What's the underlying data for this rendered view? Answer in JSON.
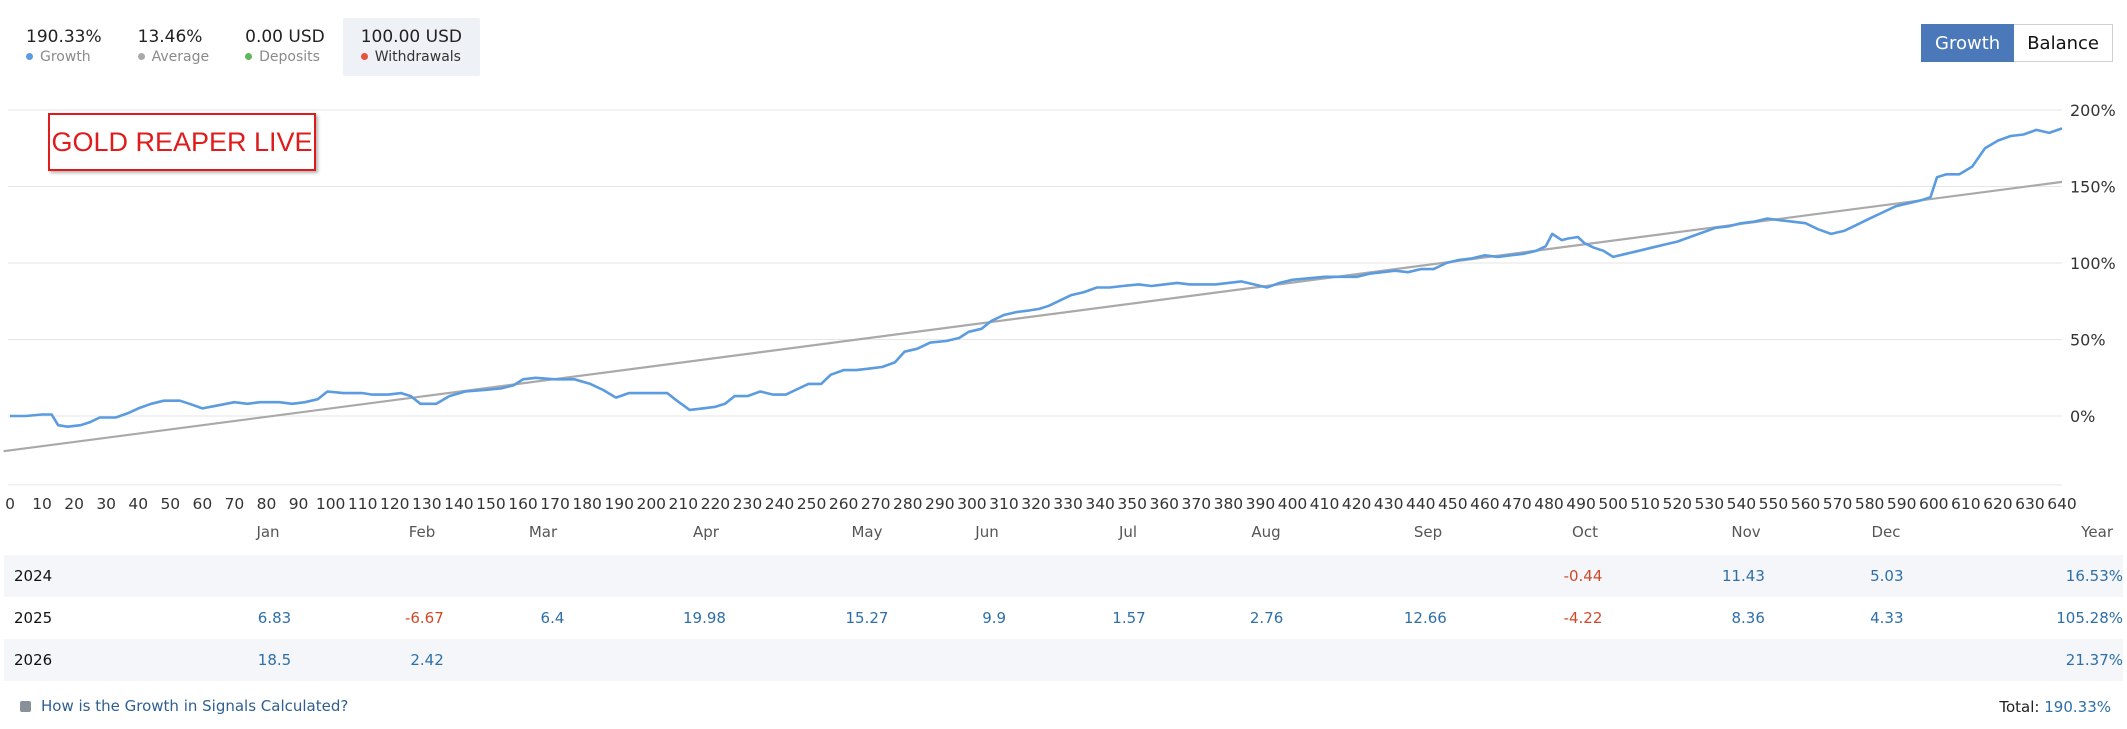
{
  "stats": [
    {
      "value": "190.33%",
      "label": "Growth",
      "dot_color": "#5b9be0",
      "active": false
    },
    {
      "value": "13.46%",
      "label": "Average",
      "dot_color": "#a9a9a9",
      "active": false
    },
    {
      "value": "0.00 USD",
      "label": "Deposits",
      "dot_color": "#5cb85c",
      "active": false
    },
    {
      "value": "100.00 USD",
      "label": "Withdrawals",
      "dot_color": "#e5533d",
      "active": true
    }
  ],
  "toggle": {
    "growth_label": "Growth",
    "balance_label": "Balance",
    "selected": "Growth"
  },
  "banner": {
    "text": "GOLD REAPER LIVE"
  },
  "chart_data": {
    "type": "line",
    "x_ticks": [
      0,
      10,
      20,
      30,
      40,
      50,
      60,
      70,
      80,
      90,
      100,
      110,
      120,
      130,
      140,
      150,
      160,
      170,
      180,
      190,
      200,
      210,
      220,
      230,
      240,
      250,
      260,
      270,
      280,
      290,
      300,
      310,
      320,
      330,
      340,
      350,
      360,
      370,
      380,
      390,
      400,
      410,
      420,
      430,
      440,
      450,
      460,
      470,
      480,
      490,
      500,
      510,
      520,
      530,
      540,
      550,
      560,
      570,
      580,
      590,
      600,
      610,
      620,
      630,
      640
    ],
    "y_ticks": [
      0,
      50,
      100,
      150,
      200
    ],
    "y_tick_labels": [
      "0%",
      "50%",
      "100%",
      "150%",
      "200%"
    ],
    "xlim": [
      0,
      640
    ],
    "ylim": [
      -45,
      200
    ],
    "y_position": "right",
    "grid": true,
    "series": [
      {
        "name": "Growth",
        "color": "#5b9be0",
        "points": [
          [
            0,
            0
          ],
          [
            5,
            0
          ],
          [
            10,
            1
          ],
          [
            13,
            1
          ],
          [
            15,
            -6
          ],
          [
            18,
            -7
          ],
          [
            22,
            -6
          ],
          [
            25,
            -4
          ],
          [
            28,
            -1
          ],
          [
            33,
            -1
          ],
          [
            37,
            2
          ],
          [
            40,
            5
          ],
          [
            44,
            8
          ],
          [
            48,
            10
          ],
          [
            53,
            10
          ],
          [
            56,
            8
          ],
          [
            60,
            5
          ],
          [
            65,
            7
          ],
          [
            70,
            9
          ],
          [
            74,
            8
          ],
          [
            78,
            9
          ],
          [
            84,
            9
          ],
          [
            88,
            8
          ],
          [
            92,
            9
          ],
          [
            96,
            11
          ],
          [
            99,
            16
          ],
          [
            104,
            15
          ],
          [
            110,
            15
          ],
          [
            113,
            14
          ],
          [
            118,
            14
          ],
          [
            122,
            15
          ],
          [
            125,
            13
          ],
          [
            128,
            8
          ],
          [
            133,
            8
          ],
          [
            137,
            13
          ],
          [
            142,
            16
          ],
          [
            148,
            17
          ],
          [
            153,
            18
          ],
          [
            157,
            20
          ],
          [
            160,
            24
          ],
          [
            164,
            25
          ],
          [
            170,
            24
          ],
          [
            176,
            24
          ],
          [
            181,
            21
          ],
          [
            185,
            17
          ],
          [
            189,
            12
          ],
          [
            193,
            15
          ],
          [
            197,
            15
          ],
          [
            201,
            15
          ],
          [
            205,
            15
          ],
          [
            208,
            10
          ],
          [
            212,
            4
          ],
          [
            216,
            5
          ],
          [
            220,
            6
          ],
          [
            223,
            8
          ],
          [
            226,
            13
          ],
          [
            230,
            13
          ],
          [
            234,
            16
          ],
          [
            238,
            14
          ],
          [
            242,
            14
          ],
          [
            246,
            18
          ],
          [
            249,
            21
          ],
          [
            253,
            21
          ],
          [
            256,
            27
          ],
          [
            260,
            30
          ],
          [
            264,
            30
          ],
          [
            268,
            31
          ],
          [
            272,
            32
          ],
          [
            276,
            35
          ],
          [
            279,
            42
          ],
          [
            283,
            44
          ],
          [
            287,
            48
          ],
          [
            292,
            49
          ],
          [
            296,
            51
          ],
          [
            299,
            55
          ],
          [
            303,
            57
          ],
          [
            306,
            62
          ],
          [
            310,
            66
          ],
          [
            314,
            68
          ],
          [
            318,
            69
          ],
          [
            321,
            70
          ],
          [
            324,
            72
          ],
          [
            328,
            76
          ],
          [
            331,
            79
          ],
          [
            335,
            81
          ],
          [
            339,
            84
          ],
          [
            343,
            84
          ],
          [
            347,
            85
          ],
          [
            352,
            86
          ],
          [
            356,
            85
          ],
          [
            360,
            86
          ],
          [
            364,
            87
          ],
          [
            368,
            86
          ],
          [
            372,
            86
          ],
          [
            376,
            86
          ],
          [
            380,
            87
          ],
          [
            384,
            88
          ],
          [
            388,
            86
          ],
          [
            392,
            84
          ],
          [
            396,
            87
          ],
          [
            400,
            89
          ],
          [
            405,
            90
          ],
          [
            410,
            91
          ],
          [
            415,
            91
          ],
          [
            420,
            91
          ],
          [
            424,
            93
          ],
          [
            428,
            94
          ],
          [
            432,
            95
          ],
          [
            436,
            94
          ],
          [
            440,
            96
          ],
          [
            444,
            96
          ],
          [
            448,
            100
          ],
          [
            452,
            102
          ],
          [
            456,
            103
          ],
          [
            460,
            105
          ],
          [
            464,
            104
          ],
          [
            468,
            105
          ],
          [
            472,
            106
          ],
          [
            476,
            108
          ],
          [
            479,
            111
          ],
          [
            481,
            119
          ],
          [
            484,
            115
          ],
          [
            486,
            116
          ],
          [
            489,
            117
          ],
          [
            491,
            113
          ],
          [
            494,
            110
          ],
          [
            497,
            108
          ],
          [
            500,
            104
          ],
          [
            504,
            106
          ],
          [
            508,
            108
          ],
          [
            512,
            110
          ],
          [
            516,
            112
          ],
          [
            520,
            114
          ],
          [
            524,
            117
          ],
          [
            528,
            120
          ],
          [
            532,
            123
          ],
          [
            536,
            124
          ],
          [
            540,
            126
          ],
          [
            544,
            127
          ],
          [
            548,
            129
          ],
          [
            552,
            128
          ],
          [
            556,
            127
          ],
          [
            560,
            126
          ],
          [
            564,
            122
          ],
          [
            568,
            119
          ],
          [
            572,
            121
          ],
          [
            576,
            125
          ],
          [
            580,
            129
          ],
          [
            584,
            133
          ],
          [
            588,
            137
          ],
          [
            592,
            139
          ],
          [
            596,
            141
          ],
          [
            599,
            143
          ],
          [
            601,
            156
          ],
          [
            604,
            158
          ],
          [
            608,
            158
          ],
          [
            612,
            163
          ],
          [
            616,
            175
          ],
          [
            620,
            180
          ],
          [
            624,
            183
          ],
          [
            628,
            184
          ],
          [
            632,
            187
          ],
          [
            636,
            185
          ],
          [
            640,
            188
          ]
        ]
      },
      {
        "name": "Average",
        "color": "#a9a9a9",
        "points": [
          [
            -2,
            -23
          ],
          [
            640,
            153
          ]
        ]
      }
    ]
  },
  "monthly_table": {
    "headers": [
      "Jan",
      "Feb",
      "Mar",
      "Apr",
      "May",
      "Jun",
      "Jul",
      "Aug",
      "Sep",
      "Oct",
      "Nov",
      "Dec",
      "Year"
    ],
    "rows": [
      {
        "year": "2024",
        "cells": [
          "",
          "",
          "",
          "",
          "",
          "",
          "",
          "",
          "",
          "-0.44",
          "11.43",
          "5.03",
          "16.53%"
        ]
      },
      {
        "year": "2025",
        "cells": [
          "6.83",
          "-6.67",
          "6.4",
          "19.98",
          "15.27",
          "9.9",
          "1.57",
          "2.76",
          "12.66",
          "-4.22",
          "8.36",
          "4.33",
          "105.28%"
        ]
      },
      {
        "year": "2026",
        "cells": [
          "18.5",
          "2.42",
          "",
          "",
          "",
          "",
          "",
          "",
          "",
          "",
          "",
          "",
          "21.37%"
        ]
      }
    ]
  },
  "footer": {
    "question": "How is the Growth in Signals Calculated?",
    "total_label": "Total:",
    "total_value": "190.33%"
  }
}
